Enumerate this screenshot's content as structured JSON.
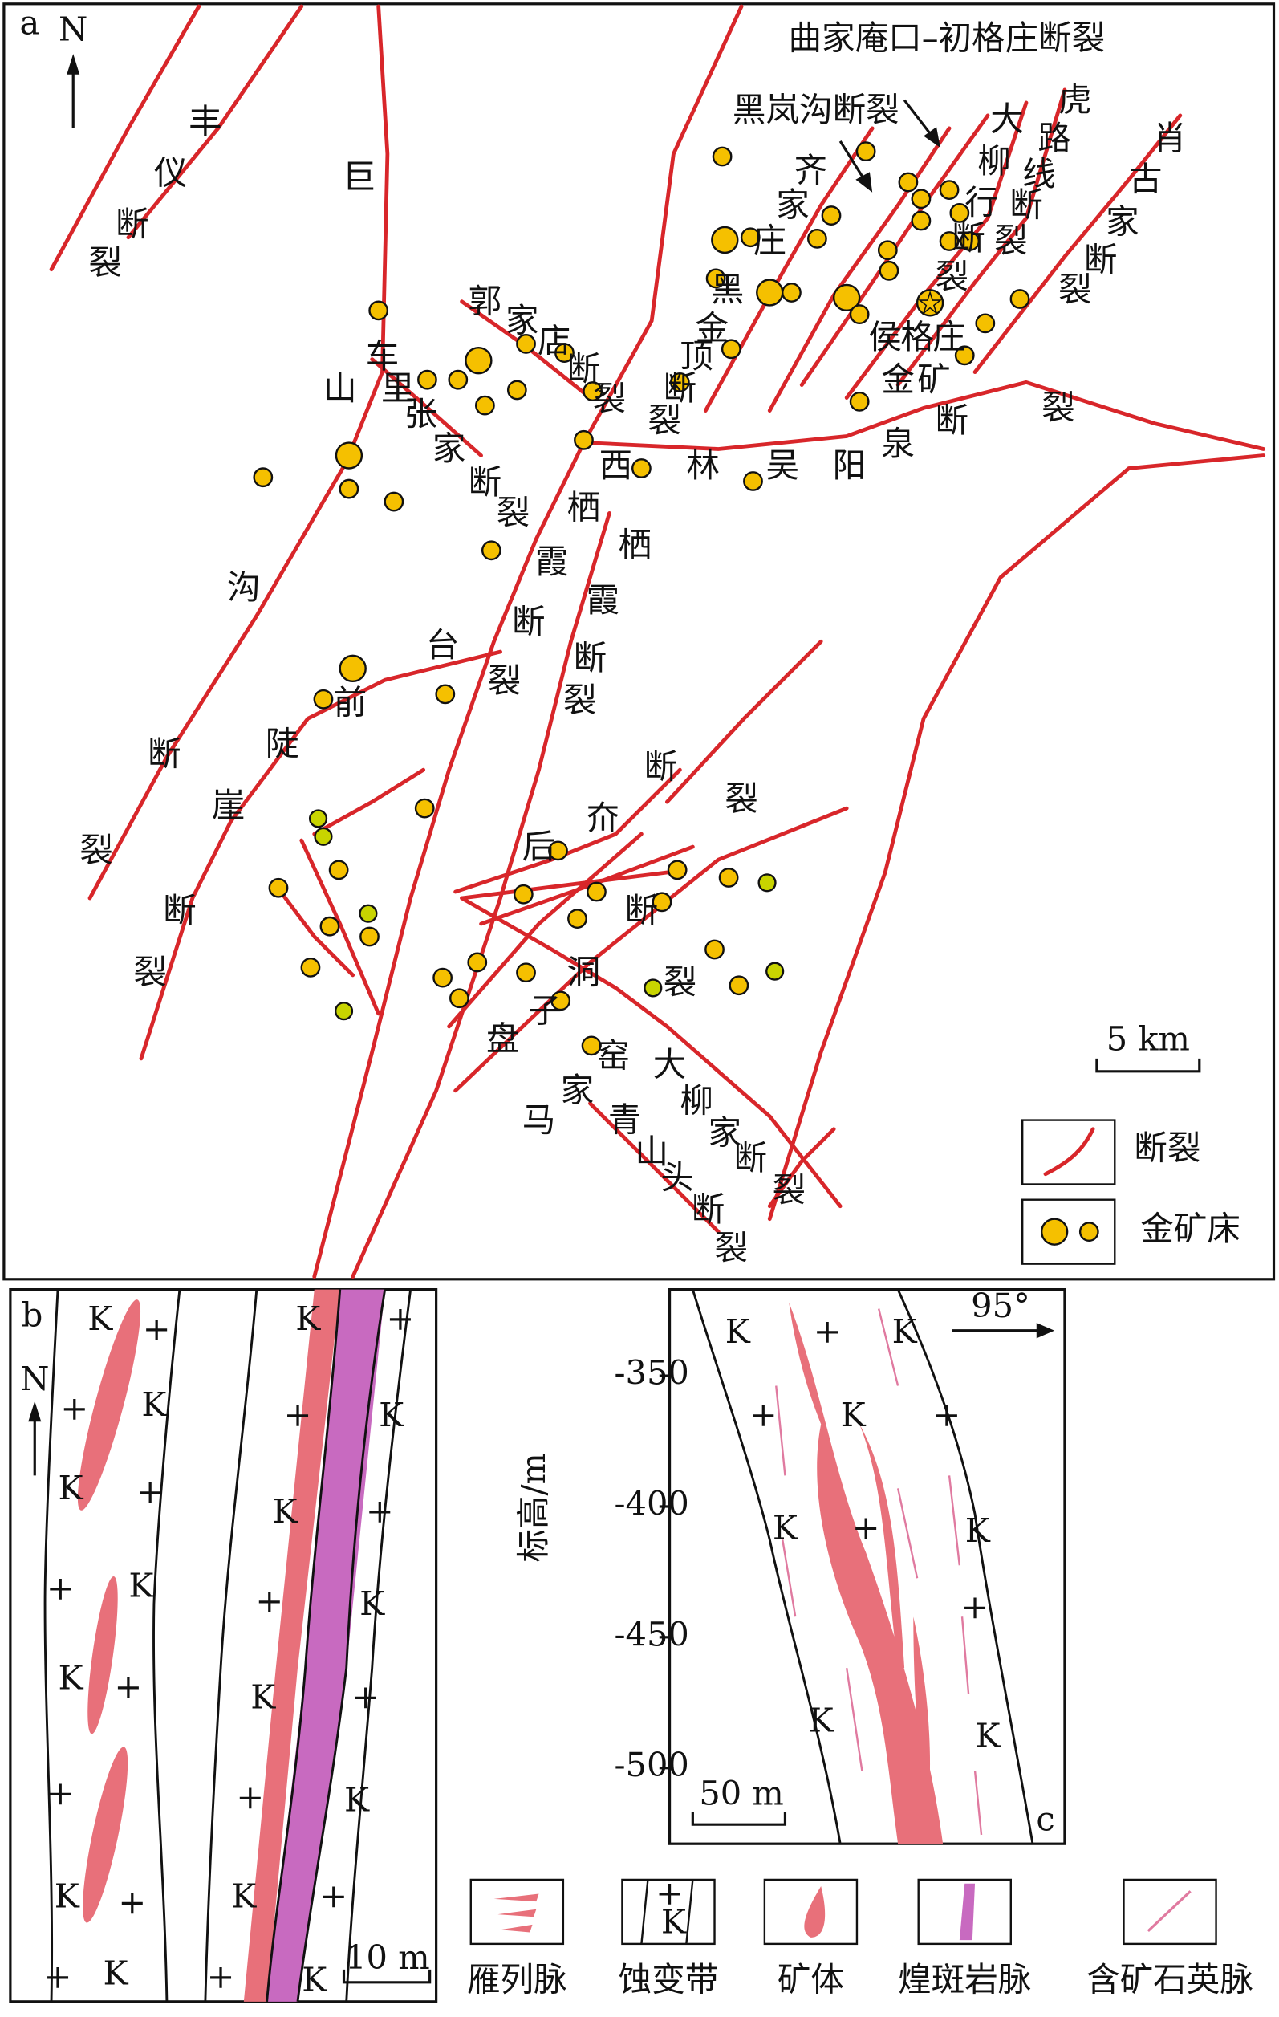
{
  "panel_a": {
    "letter": "a",
    "north": "N",
    "arrow_labels": [
      "曲家庵口–初格庄断裂",
      "黑岚沟断裂"
    ],
    "labels": [
      "丰仪断裂",
      "巨山沟断裂",
      "郭家店断裂",
      "车里张家断裂",
      "齐家庄黑金顶断裂",
      "虎路线断裂",
      "大柳行断裂",
      "肖古家断裂",
      "侯格庄金矿",
      "西林吴阳泉断裂",
      "栖霞断裂",
      "栖霞断裂",
      "台前陡崖断裂",
      "后夼断裂",
      "断裂",
      "洞子盘",
      "窑家马",
      "大柳家断裂",
      "青山头断裂"
    ],
    "legend": [
      "断裂",
      "金矿床"
    ],
    "scale": "5 km"
  },
  "panel_b": {
    "letter": "b",
    "north": "N",
    "scale": "10 m"
  },
  "panel_c": {
    "letter": "c",
    "azimuth": "95°",
    "scale": "50 m",
    "y_axis": {
      "label": "标高/m",
      "ylim": [
        -317,
        -529
      ],
      "yticks": [
        -350,
        -400,
        -450,
        -500
      ]
    }
  },
  "symbols": {
    "K": "K",
    "plus": "+"
  },
  "legend": [
    "雁列脉",
    "蚀变带",
    "矿体",
    "煌斑岩脉",
    "含矿石英脉"
  ]
}
